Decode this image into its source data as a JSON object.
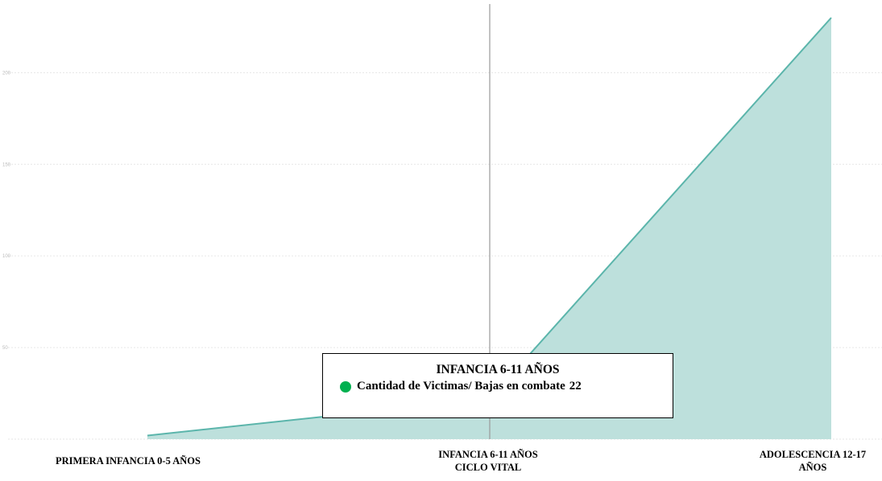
{
  "chart_data": {
    "type": "area",
    "categories": [
      "PRIMERA INFANCIA 0-5 AÑOS",
      "INFANCIA 6-11 AÑOS",
      "ADOLESCENCIA 12-17 AÑOS"
    ],
    "x_labels_lines": [
      [
        "PRIMERA INFANCIA 0-5 AÑOS"
      ],
      [
        "INFANCIA 6-11 AÑOS",
        "CICLO VITAL"
      ],
      [
        "ADOLESCENCIA 12-17",
        "AÑOS"
      ]
    ],
    "series": [
      {
        "name": "Cantidad de Victimas/ Bajas en combate",
        "values": [
          2,
          22,
          230
        ],
        "color": "#5bb5ab",
        "fill": "#bde0dc"
      }
    ],
    "xlabel": "CICLO VITAL",
    "ylabel": "",
    "ylim": [
      0,
      230
    ],
    "yticks": [
      50,
      100,
      150,
      200
    ],
    "grid": true,
    "hover_index": 1,
    "tooltip": {
      "title": "INFANCIA 6-11 AÑOS",
      "series_label": "Cantidad de Victimas/ Bajas en combate",
      "value": "22",
      "dot_color": "#00b050"
    }
  }
}
